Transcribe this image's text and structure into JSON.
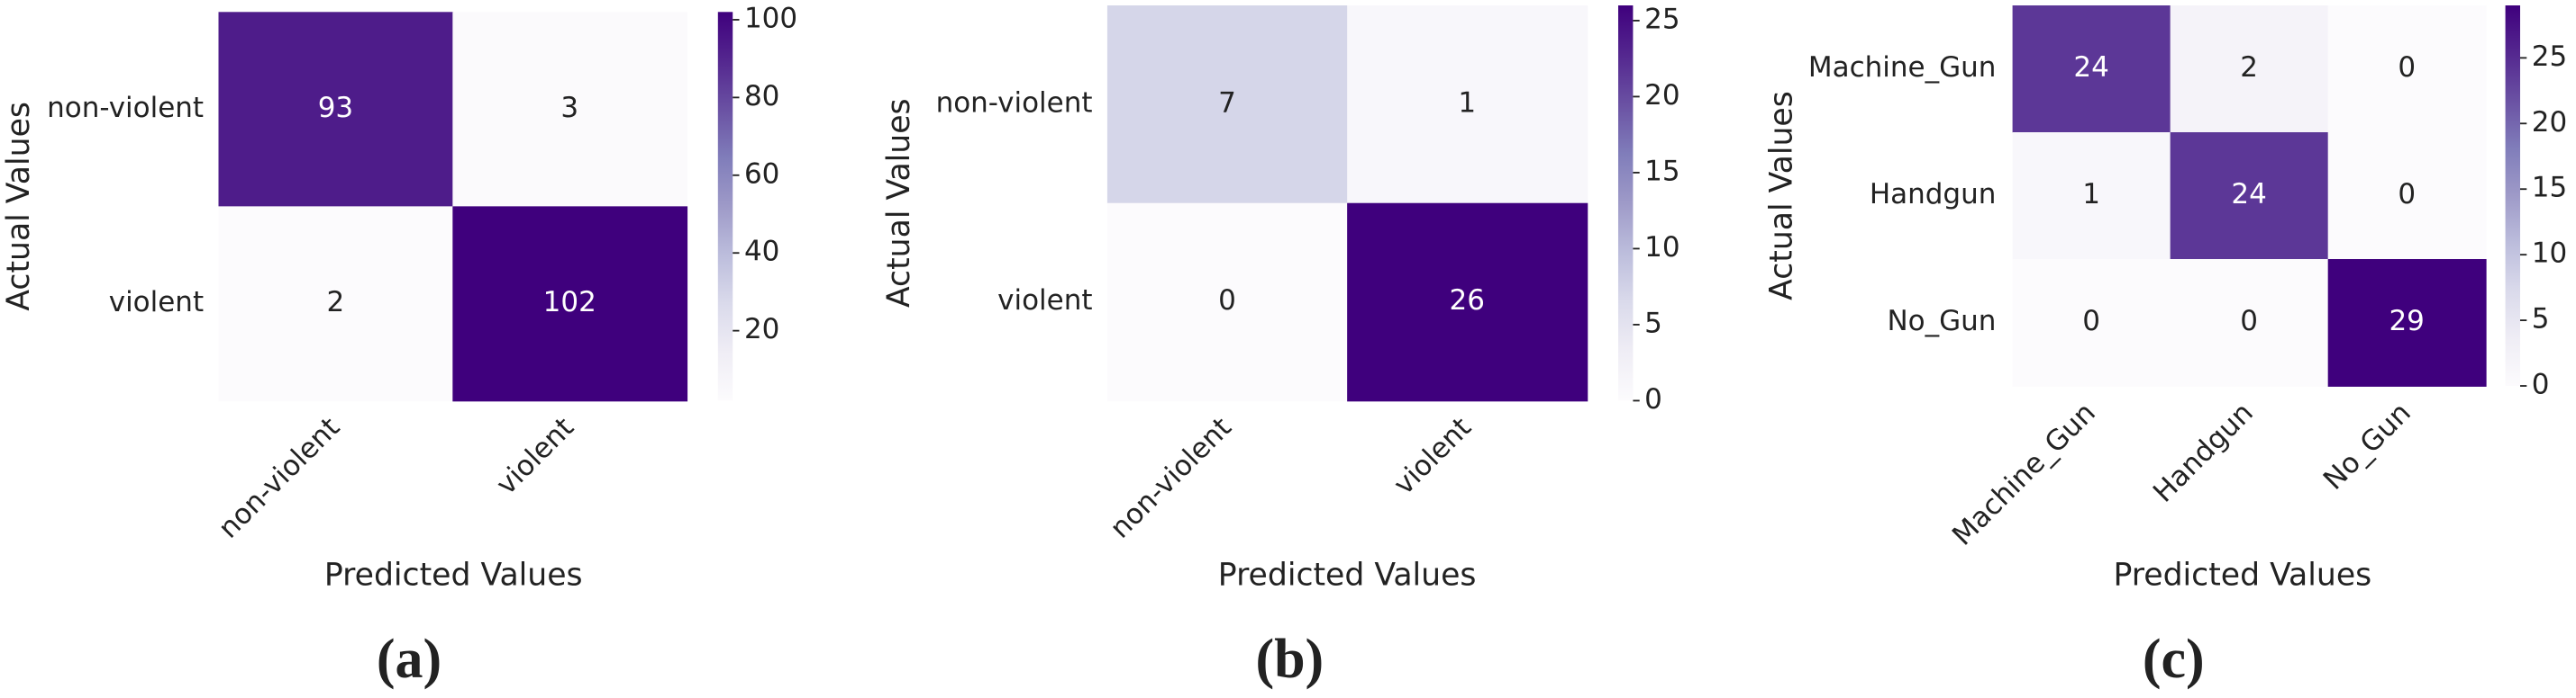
{
  "chart_data": [
    {
      "type": "heatmap",
      "caption": "(a)",
      "x_label": "Predicted Values",
      "y_label": "Actual Values",
      "columns": [
        "non-violent",
        "violent"
      ],
      "rows": [
        "non-violent",
        "violent"
      ],
      "values": [
        [
          93,
          3
        ],
        [
          2,
          102
        ]
      ],
      "zlim": [
        2,
        102
      ],
      "zticks": [
        20,
        40,
        60,
        80,
        100
      ],
      "colormap": [
        "#fcfbfd",
        "#efedf5",
        "#dadaeb",
        "#bcbddc",
        "#9e9ac8",
        "#807dba",
        "#6a51a3",
        "#54278f",
        "#3f007d"
      ]
    },
    {
      "type": "heatmap",
      "caption": "(b)",
      "x_label": "Predicted Values",
      "y_label": "Actual Values",
      "columns": [
        "non-violent",
        "violent"
      ],
      "rows": [
        "non-violent",
        "violent"
      ],
      "values": [
        [
          7,
          1
        ],
        [
          0,
          26
        ]
      ],
      "zlim": [
        0,
        26
      ],
      "zticks": [
        0,
        5,
        10,
        15,
        20,
        25
      ],
      "colormap": [
        "#fcfbfd",
        "#efedf5",
        "#dadaeb",
        "#bcbddc",
        "#9e9ac8",
        "#807dba",
        "#6a51a3",
        "#54278f",
        "#3f007d"
      ]
    },
    {
      "type": "heatmap",
      "caption": "(c)",
      "x_label": "Predicted Values",
      "y_label": "Actual Values",
      "columns": [
        "Machine_Gun",
        "Handgun",
        "No_Gun"
      ],
      "rows": [
        "Machine_Gun",
        "Handgun",
        "No_Gun"
      ],
      "values": [
        [
          24,
          2,
          0
        ],
        [
          1,
          24,
          0
        ],
        [
          0,
          0,
          29
        ]
      ],
      "zlim": [
        0,
        29
      ],
      "zticks": [
        0,
        5,
        10,
        15,
        20,
        25
      ],
      "colormap": [
        "#fcfbfd",
        "#efedf5",
        "#dadaeb",
        "#bcbddc",
        "#9e9ac8",
        "#807dba",
        "#6a51a3",
        "#54278f",
        "#3f007d"
      ]
    }
  ]
}
